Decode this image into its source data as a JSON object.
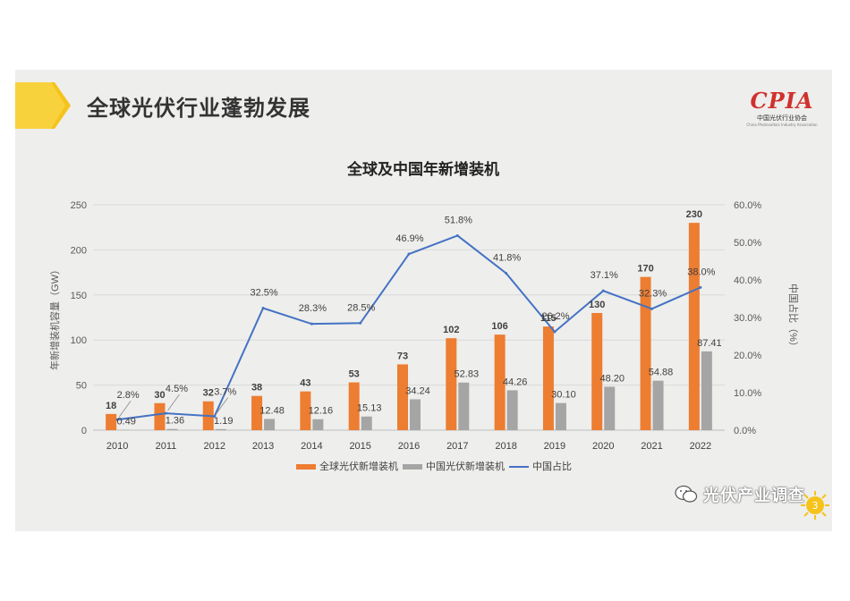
{
  "slide": {
    "title": "全球光伏行业蓬勃发展",
    "logo": {
      "mark": "CPIA",
      "name": "中国光伏行业协会",
      "name_en": "China Photovoltaic Industry Association"
    },
    "page_number": "3",
    "watermark": "光伏产业调查"
  },
  "colors": {
    "global_bar": "#ed7d31",
    "china_bar": "#a5a5a5",
    "china_share_line": "#4472c4",
    "header_accent": "#f5c31c"
  },
  "chart_data": {
    "type": "bar",
    "title": "全球及中国年新增装机",
    "ylabel": "年新增装机容量（GW）",
    "y2label": "中国占比（%）",
    "categories": [
      "2010",
      "2011",
      "2012",
      "2013",
      "2014",
      "2015",
      "2016",
      "2017",
      "2018",
      "2019",
      "2020",
      "2021",
      "2022"
    ],
    "ylim": [
      0,
      250
    ],
    "y_ticks": [
      "0",
      "50",
      "100",
      "150",
      "200",
      "250"
    ],
    "y2lim": [
      0,
      60
    ],
    "y2_ticks": [
      "0.0%",
      "10.0%",
      "20.0%",
      "30.0%",
      "40.0%",
      "50.0%",
      "60.0%"
    ],
    "grid": true,
    "legend_position": "bottom",
    "series": [
      {
        "name": "全球光伏新增装机",
        "type": "bar",
        "values": [
          18,
          30,
          32,
          38,
          43,
          53,
          73,
          102,
          106,
          115,
          130,
          170,
          230
        ],
        "labels": [
          "18",
          "30",
          "32",
          "38",
          "43",
          "53",
          "73",
          "102",
          "106",
          "115",
          "130",
          "170",
          "230"
        ]
      },
      {
        "name": "中国光伏新增装机",
        "type": "bar",
        "values": [
          0.49,
          1.36,
          1.19,
          12.48,
          12.16,
          15.13,
          34.24,
          52.83,
          44.26,
          30.1,
          48.2,
          54.88,
          87.41
        ],
        "labels": [
          "0.49",
          "1.36",
          "1.19",
          "12.48",
          "12.16",
          "15.13",
          "34.24",
          "52.83",
          "44.26",
          "30.10",
          "48.20",
          "54.88",
          "87.41"
        ]
      },
      {
        "name": "中国占比",
        "type": "line",
        "axis": "right",
        "values": [
          2.8,
          4.5,
          3.7,
          32.5,
          28.3,
          28.5,
          46.9,
          51.8,
          41.8,
          26.2,
          37.1,
          32.3,
          38.0
        ],
        "labels": [
          "2.8%",
          "4.5%",
          "3.7%",
          "32.5%",
          "28.3%",
          "28.5%",
          "46.9%",
          "51.8%",
          "41.8%",
          "26.2%",
          "37.1%",
          "32.3%",
          "38.0%"
        ]
      }
    ]
  }
}
